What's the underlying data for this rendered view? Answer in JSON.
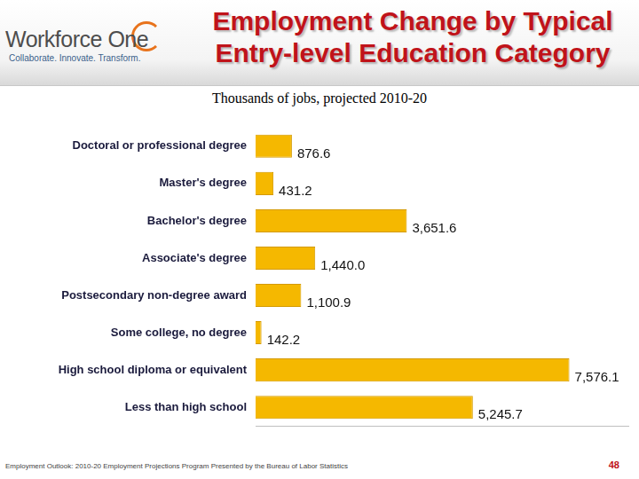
{
  "header": {
    "logo": "Workforce One",
    "tagline": "Collaborate. Innovate. Transform."
  },
  "chart_data": {
    "type": "bar",
    "orientation": "horizontal",
    "title": "Employment Change by Typical Entry-level Education Category",
    "subtitle": "Thousands of jobs, projected 2010-20",
    "categories": [
      "Doctoral or professional degree",
      "Master's degree",
      "Bachelor's degree",
      "Associate's degree",
      "Postsecondary non-degree award",
      "Some college, no degree",
      "High school diploma or equivalent",
      "Less than high school"
    ],
    "values": [
      876.6,
      431.2,
      3651.6,
      1440.0,
      1100.9,
      142.2,
      7576.1,
      5245.7
    ],
    "value_labels": [
      "876.6",
      "431.2",
      "3,651.6",
      "1,440.0",
      "1,100.9",
      "142.2",
      "7,576.1",
      "5,245.7"
    ],
    "color": "#f5b800",
    "xlim": [
      0,
      9000
    ],
    "grid": false,
    "data_labels": true,
    "tick_labels": "y"
  },
  "footer": {
    "source": "Employment Outlook: 2010-20 Employment Projections Program Presented by the Bureau of Labor Statistics",
    "page": 48
  }
}
